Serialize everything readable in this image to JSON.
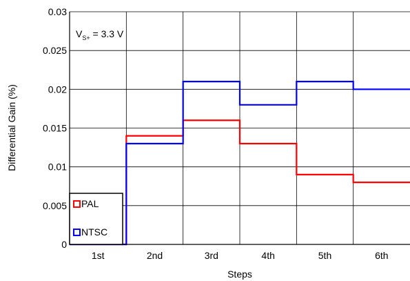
{
  "chart_data": {
    "type": "line",
    "step": true,
    "xlabel": "Steps",
    "ylabel": "Differential Gain (%)",
    "categories": [
      "1st",
      "2nd",
      "3rd",
      "4th",
      "5th",
      "6th"
    ],
    "ylim": [
      0,
      0.03
    ],
    "yticks": [
      "0",
      "0.005",
      "0.01",
      "0.015",
      "0.02",
      "0.025",
      "0.03"
    ],
    "grid": true,
    "annotation": {
      "main": "V",
      "sub": "S+",
      "rest": " = 3.3 V"
    },
    "legend_position": "bottom-left",
    "series": [
      {
        "name": "PAL",
        "color": "#ff0000",
        "values": [
          0,
          0.014,
          0.016,
          0.013,
          0.009,
          0.008
        ]
      },
      {
        "name": "NTSC",
        "color": "#0000ff",
        "values": [
          0,
          0.013,
          0.021,
          0.018,
          0.021,
          0.02
        ]
      }
    ]
  }
}
